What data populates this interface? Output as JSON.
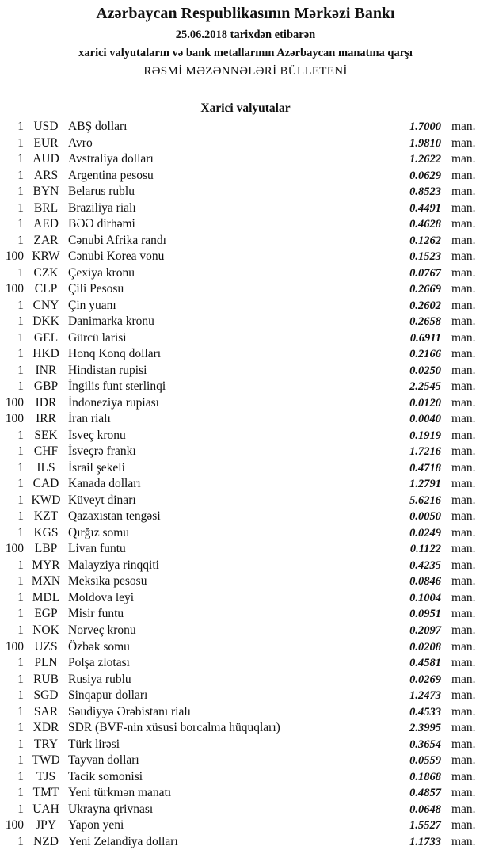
{
  "header": {
    "title": "Azərbaycan Respublikasının Mərkəzi Bankı",
    "date_line": "25.06.2018  tarixdən etibarən",
    "subtitle": "xarici valyutaların və bank metallarının Azərbaycan manatına qarşı",
    "bulletin": "RƏSMİ MƏZƏNNƏLƏRİ BÜLLETENİ"
  },
  "section_title": "Xarici valyutalar",
  "unit_label": "man.",
  "rates": [
    {
      "amount": "1",
      "code": "USD",
      "name": "ABŞ dolları",
      "rate": "1.7000"
    },
    {
      "amount": "1",
      "code": "EUR",
      "name": "Avro",
      "rate": "1.9810"
    },
    {
      "amount": "1",
      "code": "AUD",
      "name": "Avstraliya dolları",
      "rate": "1.2622"
    },
    {
      "amount": "1",
      "code": "ARS",
      "name": "Argentina pesosu",
      "rate": "0.0629"
    },
    {
      "amount": "1",
      "code": "BYN",
      "name": "Belarus rublu",
      "rate": "0.8523"
    },
    {
      "amount": "1",
      "code": "BRL",
      "name": "Braziliya rialı",
      "rate": "0.4491"
    },
    {
      "amount": "1",
      "code": "AED",
      "name": "BƏƏ dirhəmi",
      "rate": "0.4628"
    },
    {
      "amount": "1",
      "code": "ZAR",
      "name": "Cənubi Afrika randı",
      "rate": "0.1262"
    },
    {
      "amount": "100",
      "code": "KRW",
      "name": "Cənubi Korea vonu",
      "rate": "0.1523"
    },
    {
      "amount": "1",
      "code": "CZK",
      "name": "Çexiya kronu",
      "rate": "0.0767"
    },
    {
      "amount": "100",
      "code": "CLP",
      "name": "Çili Pesosu",
      "rate": "0.2669"
    },
    {
      "amount": "1",
      "code": "CNY",
      "name": "Çin yuanı",
      "rate": "0.2602"
    },
    {
      "amount": "1",
      "code": "DKK",
      "name": "Danimarka kronu",
      "rate": "0.2658"
    },
    {
      "amount": "1",
      "code": "GEL",
      "name": "Gürcü larisi",
      "rate": "0.6911"
    },
    {
      "amount": "1",
      "code": "HKD",
      "name": "Honq Konq dolları",
      "rate": "0.2166"
    },
    {
      "amount": "1",
      "code": "INR",
      "name": "Hindistan rupisi",
      "rate": "0.0250"
    },
    {
      "amount": "1",
      "code": "GBP",
      "name": "İngilis funt sterlinqi",
      "rate": "2.2545"
    },
    {
      "amount": "100",
      "code": "IDR",
      "name": "İndoneziya rupiası",
      "rate": "0.0120"
    },
    {
      "amount": "100",
      "code": "IRR",
      "name": "İran rialı",
      "rate": "0.0040"
    },
    {
      "amount": "1",
      "code": "SEK",
      "name": "İsveç kronu",
      "rate": "0.1919"
    },
    {
      "amount": "1",
      "code": "CHF",
      "name": "İsveçrə frankı",
      "rate": "1.7216"
    },
    {
      "amount": "1",
      "code": "ILS",
      "name": "İsrail şekeli",
      "rate": "0.4718"
    },
    {
      "amount": "1",
      "code": "CAD",
      "name": "Kanada dolları",
      "rate": "1.2791"
    },
    {
      "amount": "1",
      "code": "KWD",
      "name": "Küveyt dinarı",
      "rate": "5.6216"
    },
    {
      "amount": "1",
      "code": "KZT",
      "name": "Qazaxıstan tengəsi",
      "rate": "0.0050"
    },
    {
      "amount": "1",
      "code": "KGS",
      "name": "Qırğız somu",
      "rate": "0.0249"
    },
    {
      "amount": "100",
      "code": "LBP",
      "name": "Livan funtu",
      "rate": "0.1122"
    },
    {
      "amount": "1",
      "code": "MYR",
      "name": "Malayziya rinqqiti",
      "rate": "0.4235"
    },
    {
      "amount": "1",
      "code": "MXN",
      "name": "Meksika pesosu",
      "rate": "0.0846"
    },
    {
      "amount": "1",
      "code": "MDL",
      "name": "Moldova leyi",
      "rate": "0.1004"
    },
    {
      "amount": "1",
      "code": "EGP",
      "name": "Misir funtu",
      "rate": "0.0951"
    },
    {
      "amount": "1",
      "code": "NOK",
      "name": "Norveç kronu",
      "rate": "0.2097"
    },
    {
      "amount": "100",
      "code": "UZS",
      "name": "Özbək somu",
      "rate": "0.0208"
    },
    {
      "amount": "1",
      "code": "PLN",
      "name": "Polşa zlotası",
      "rate": "0.4581"
    },
    {
      "amount": "1",
      "code": "RUB",
      "name": "Rusiya rublu",
      "rate": "0.0269"
    },
    {
      "amount": "1",
      "code": "SGD",
      "name": "Sinqapur dolları",
      "rate": "1.2473"
    },
    {
      "amount": "1",
      "code": "SAR",
      "name": "Səudiyyə Ərəbistanı rialı",
      "rate": "0.4533"
    },
    {
      "amount": "1",
      "code": "XDR",
      "name": "SDR (BVF-nin xüsusi borcalma hüquqları)",
      "rate": "2.3995"
    },
    {
      "amount": "1",
      "code": "TRY",
      "name": "Türk lirəsi",
      "rate": "0.3654"
    },
    {
      "amount": "1",
      "code": "TWD",
      "name": "Tayvan dolları",
      "rate": "0.0559"
    },
    {
      "amount": "1",
      "code": "TJS",
      "name": "Tacik somonisi",
      "rate": "0.1868"
    },
    {
      "amount": "1",
      "code": "TMT",
      "name": "Yeni türkmən manatı",
      "rate": "0.4857"
    },
    {
      "amount": "1",
      "code": "UAH",
      "name": "Ukrayna qrivnası",
      "rate": "0.0648"
    },
    {
      "amount": "100",
      "code": "JPY",
      "name": "Yapon yeni",
      "rate": "1.5527"
    },
    {
      "amount": "1",
      "code": "NZD",
      "name": "Yeni Zelandiya dolları",
      "rate": "1.1733"
    }
  ]
}
